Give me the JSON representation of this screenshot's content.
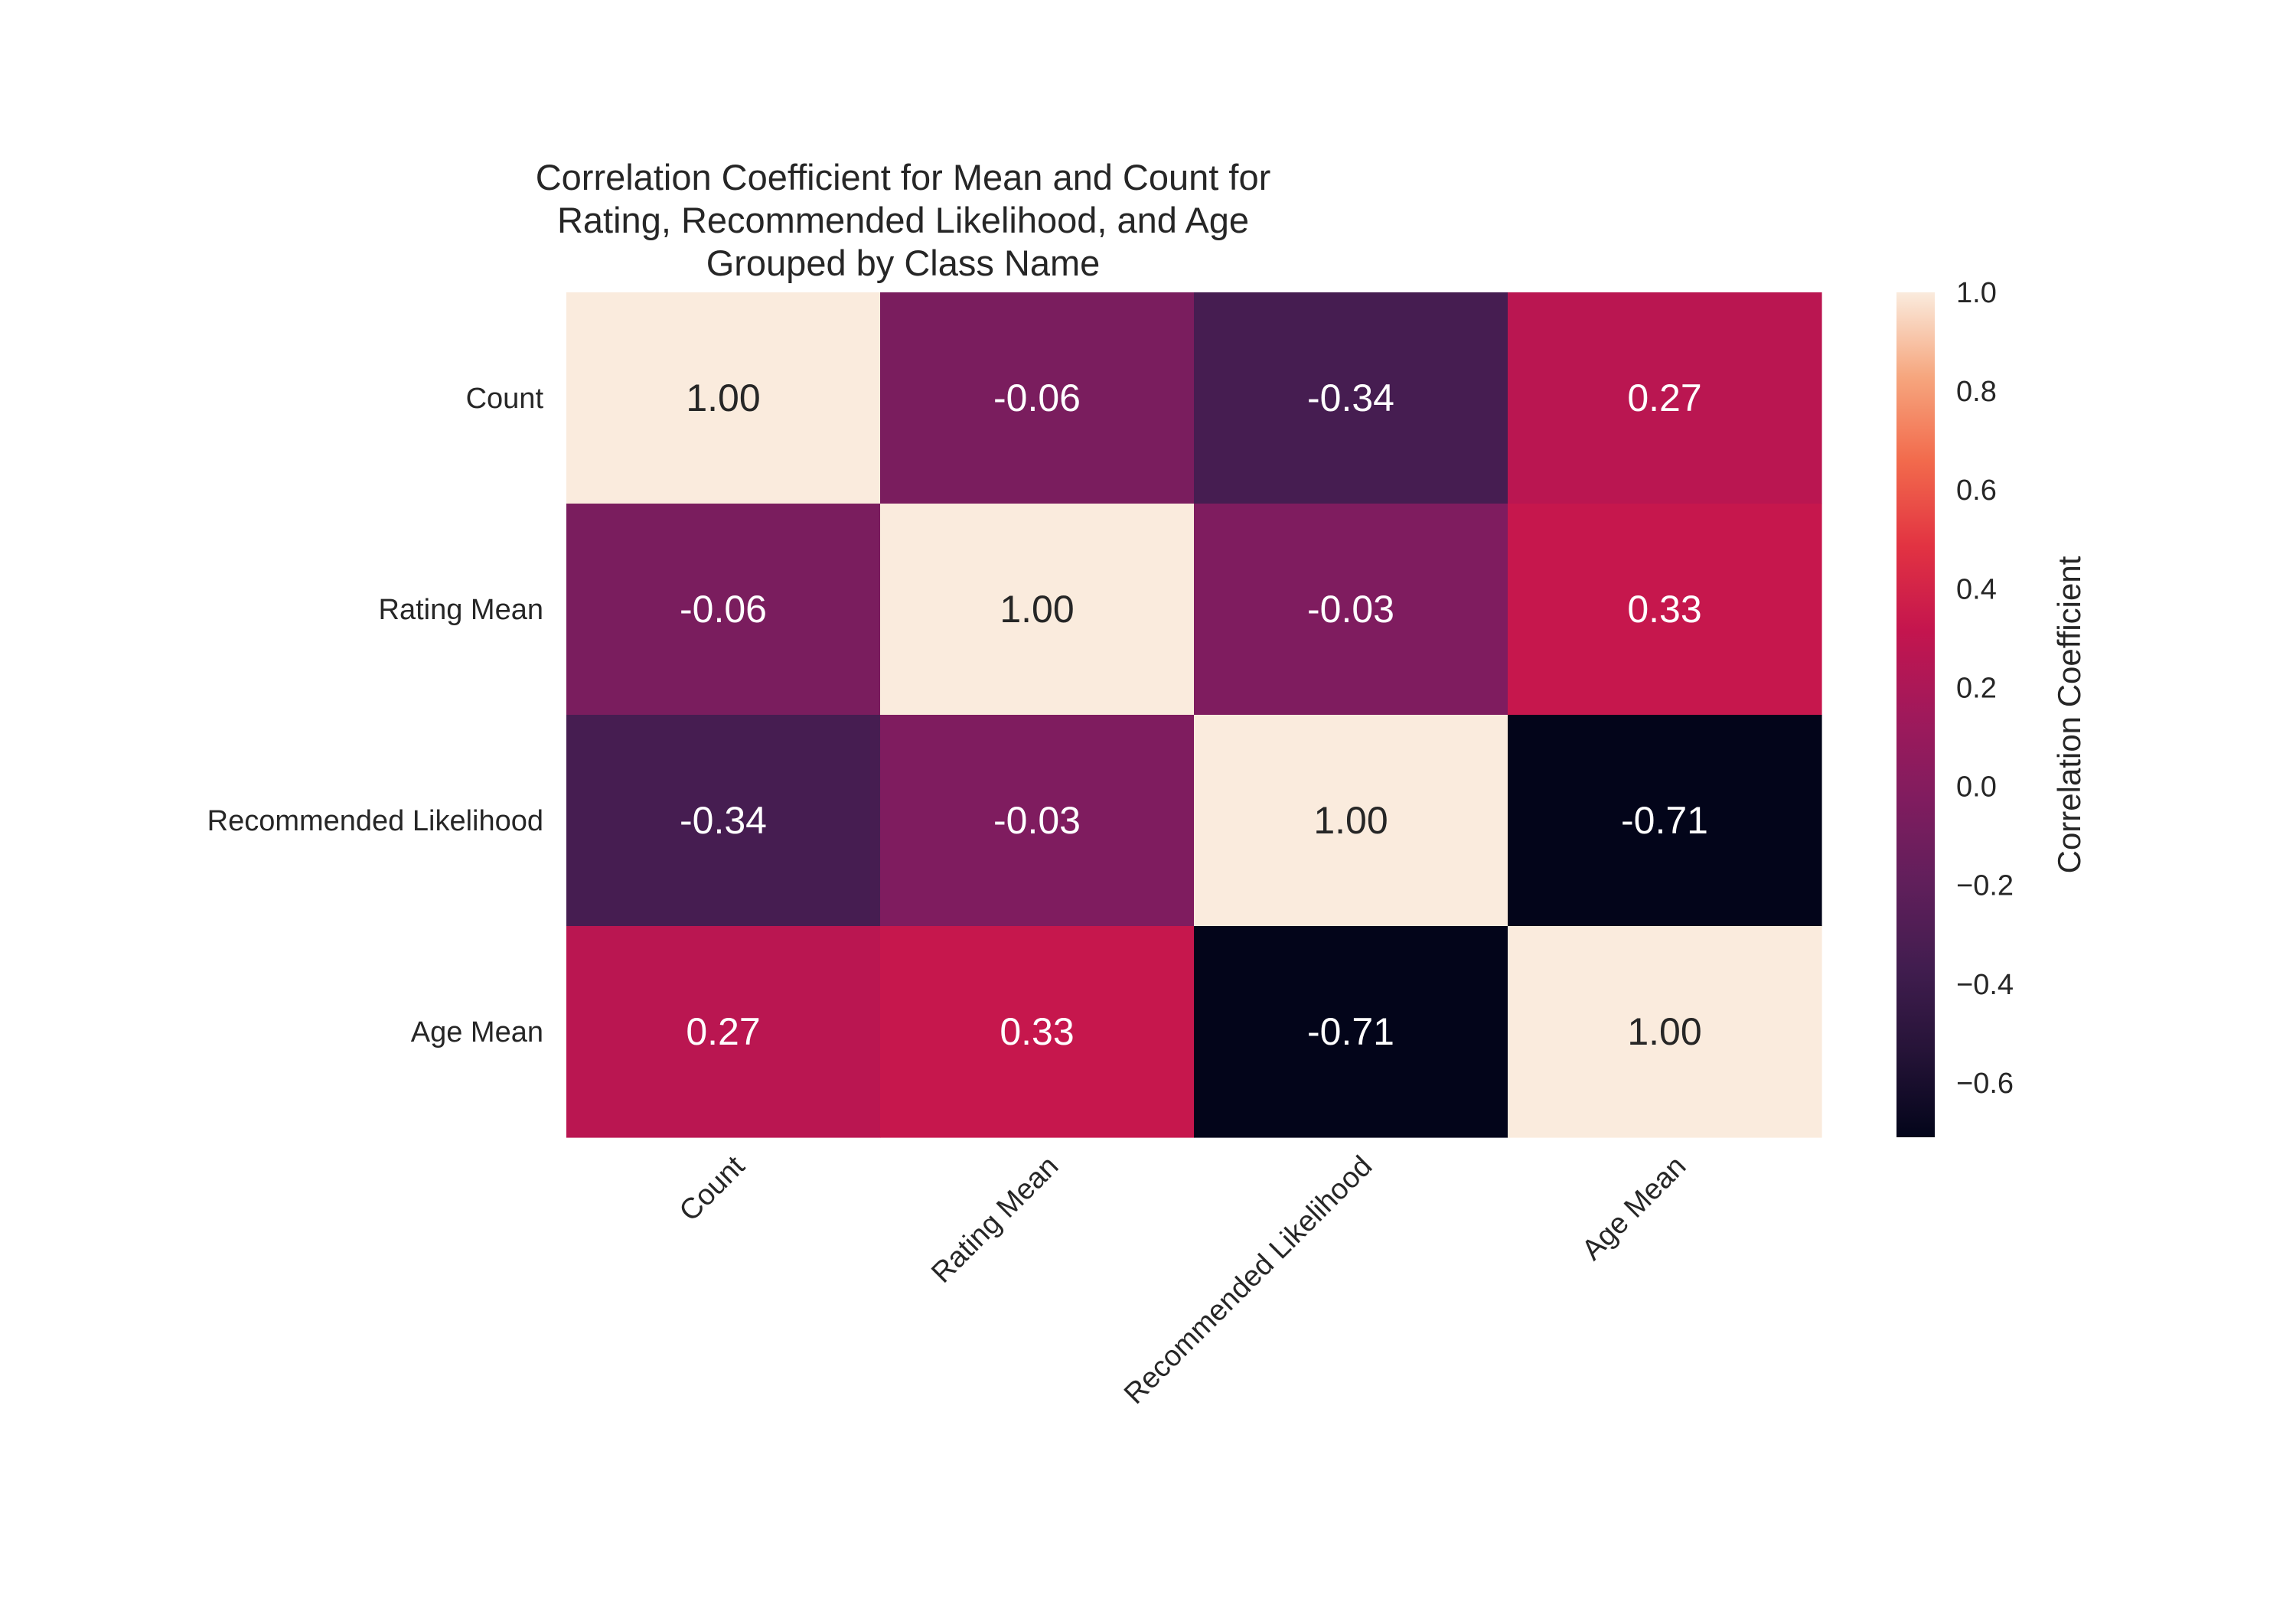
{
  "chart_data": {
    "type": "heatmap",
    "title_lines": [
      "Correlation Coefficient for Mean and Count for",
      "Rating, Recommended Likelihood, and Age",
      "Grouped by Class Name"
    ],
    "rows": [
      "Count",
      "Rating Mean",
      "Recommended Likelihood",
      "Age Mean"
    ],
    "columns": [
      "Count",
      "Rating Mean",
      "Recommended Likelihood",
      "Age Mean"
    ],
    "values": [
      [
        1.0,
        -0.06,
        -0.34,
        0.27
      ],
      [
        -0.06,
        1.0,
        -0.03,
        0.33
      ],
      [
        -0.34,
        -0.03,
        1.0,
        -0.71
      ],
      [
        0.27,
        0.33,
        -0.71,
        1.0
      ]
    ],
    "cell_labels": [
      [
        "1.00",
        "-0.06",
        "-0.34",
        "0.27"
      ],
      [
        "-0.06",
        "1.00",
        "-0.03",
        "0.33"
      ],
      [
        "-0.34",
        "-0.03",
        "1.00",
        "-0.71"
      ],
      [
        "0.27",
        "0.33",
        "-0.71",
        "1.00"
      ]
    ],
    "colorbar": {
      "label": "Correlation Coefficient",
      "ticks": [
        "1.0",
        "0.8",
        "0.6",
        "0.4",
        "0.2",
        "0.0",
        "−0.2",
        "−0.4",
        "−0.6"
      ],
      "tick_values": [
        1.0,
        0.8,
        0.6,
        0.4,
        0.2,
        0.0,
        -0.2,
        -0.4,
        -0.6
      ],
      "vmin": -0.71,
      "vmax": 1.0,
      "colormap": "rocket"
    },
    "grid": false
  }
}
